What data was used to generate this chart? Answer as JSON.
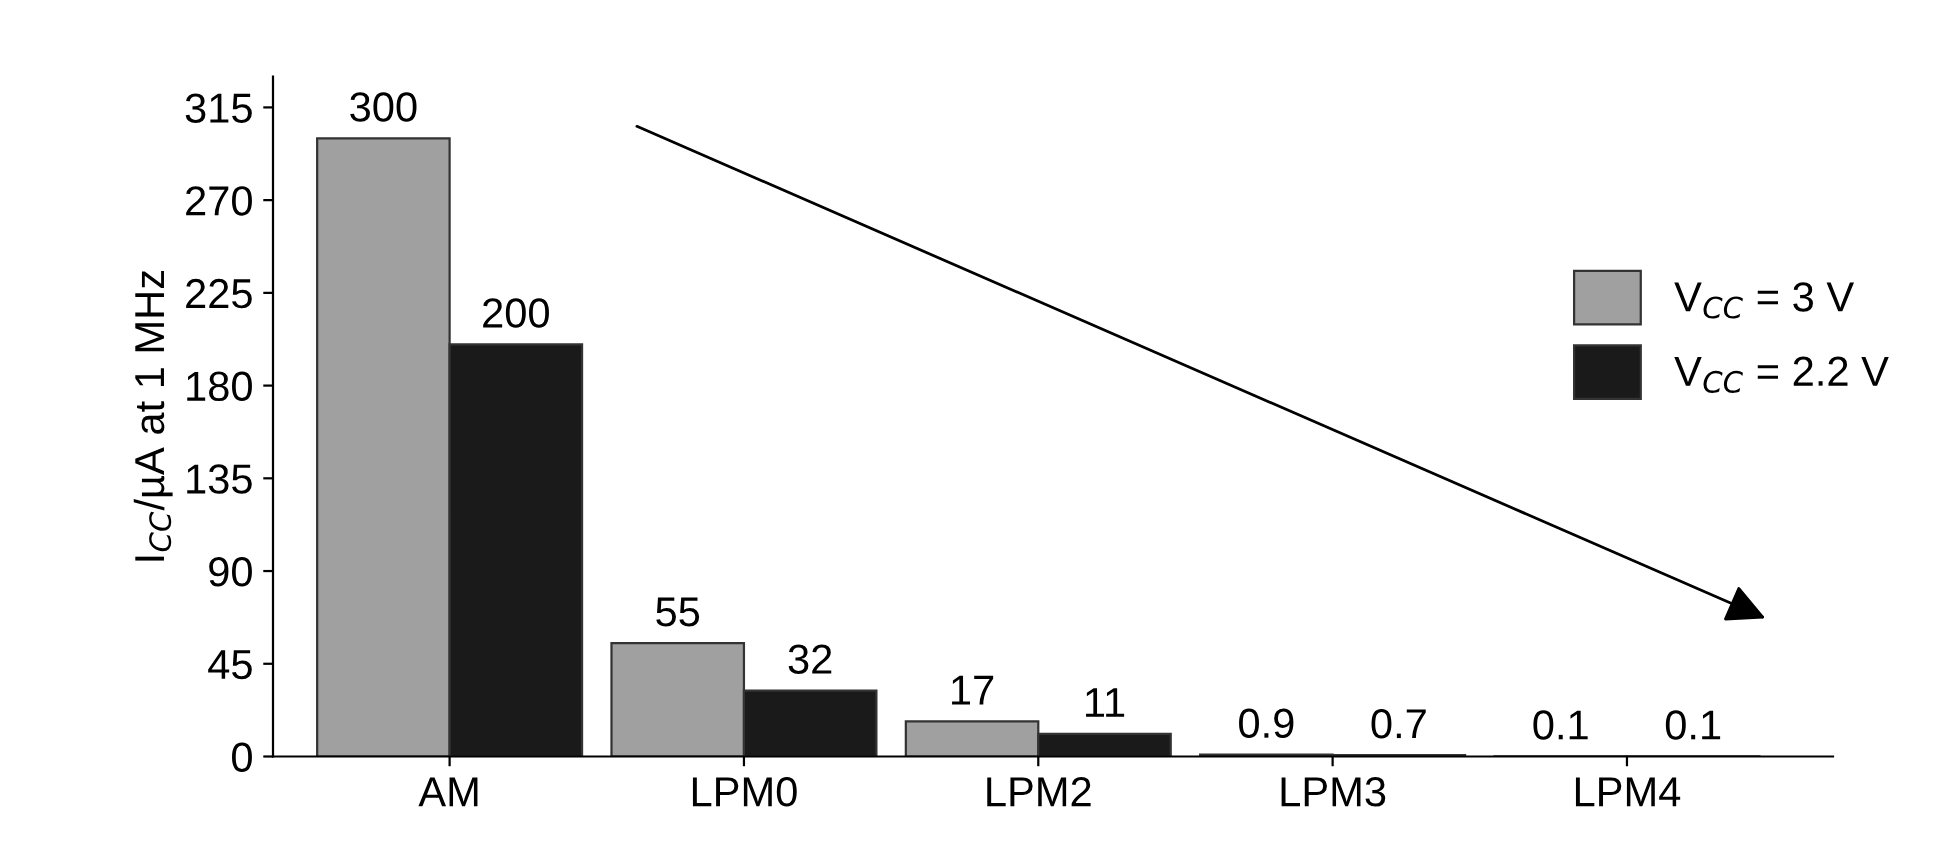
{
  "chart_data": {
    "type": "bar",
    "ylabel": "I$_{CC}$/µA at 1 MHz",
    "categories": [
      "AM",
      "LPM0",
      "LPM2",
      "LPM3",
      "LPM4"
    ],
    "series": [
      {
        "name": "V$_{CC}$ = 3 V",
        "color": "#a0a0a0",
        "values": [
          300,
          55,
          17,
          0.9,
          0.1
        ]
      },
      {
        "name": "V$_{CC}$ = 2.2 V",
        "color": "#1a1a1a",
        "values": [
          200,
          32,
          11,
          0.7,
          0.1
        ]
      }
    ],
    "ylim": [
      0,
      330
    ],
    "yticks": [
      0,
      45,
      90,
      135,
      180,
      225,
      270,
      315
    ],
    "data_labels": true,
    "legend": "right",
    "grid": false
  }
}
